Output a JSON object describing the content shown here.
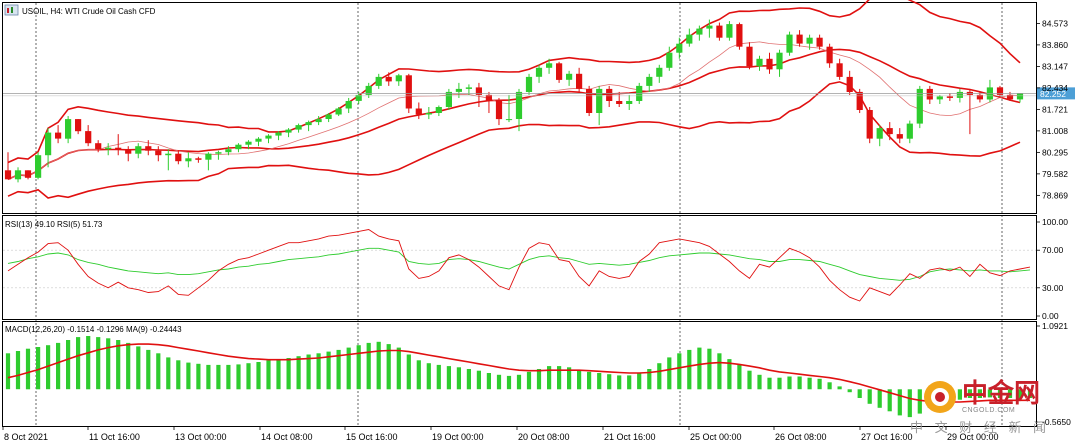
{
  "chart_data": [
    {
      "type": "candlestick",
      "symbol": "USOIL",
      "timeframe": "H4",
      "title": "USOIL, H4:  WTI Crude Oil Cash CFD",
      "y_ticks": [
        "84.573",
        "83.860",
        "83.147",
        "82.434",
        "81.721",
        "81.008",
        "80.295",
        "79.582",
        "78.869"
      ],
      "ylim": [
        78.45,
        85.15
      ],
      "current_price": "82.252",
      "current_price_color": "#4d9fd6",
      "candles": [
        [
          79.7,
          80.3,
          79.4,
          79.4
        ],
        [
          79.4,
          79.8,
          79.3,
          79.7
        ],
        [
          79.7,
          79.7,
          79.4,
          79.45
        ],
        [
          79.45,
          80.3,
          79.4,
          80.2
        ],
        [
          80.2,
          81.1,
          79.8,
          80.95
        ],
        [
          80.95,
          81.2,
          80.6,
          80.75
        ],
        [
          80.75,
          81.5,
          80.6,
          81.4
        ],
        [
          81.4,
          81.4,
          80.9,
          81.0
        ],
        [
          81.0,
          81.2,
          80.5,
          80.6
        ],
        [
          80.6,
          80.7,
          80.3,
          80.4
        ],
        [
          80.4,
          80.6,
          80.2,
          80.45
        ],
        [
          80.45,
          80.9,
          80.2,
          80.4
        ],
        [
          80.4,
          80.5,
          80.0,
          80.25
        ],
        [
          80.25,
          80.6,
          80.1,
          80.5
        ],
        [
          80.5,
          80.7,
          80.2,
          80.35
        ],
        [
          80.35,
          80.5,
          80.0,
          80.2
        ],
        [
          80.2,
          80.4,
          79.7,
          80.25
        ],
        [
          80.25,
          80.35,
          79.9,
          80.0
        ],
        [
          80.0,
          80.3,
          79.8,
          80.1
        ],
        [
          80.1,
          80.15,
          79.95,
          80.05
        ],
        [
          80.05,
          80.3,
          79.7,
          80.25
        ],
        [
          80.25,
          80.35,
          80.05,
          80.3
        ],
        [
          80.3,
          80.5,
          80.2,
          80.4
        ],
        [
          80.4,
          80.6,
          80.3,
          80.55
        ],
        [
          80.55,
          80.7,
          80.4,
          80.65
        ],
        [
          80.65,
          80.8,
          80.5,
          80.75
        ],
        [
          80.75,
          80.9,
          80.6,
          80.85
        ],
        [
          80.85,
          81.0,
          80.7,
          80.95
        ],
        [
          80.95,
          81.1,
          80.8,
          81.05
        ],
        [
          81.05,
          81.25,
          80.95,
          81.2
        ],
        [
          81.2,
          81.35,
          81.0,
          81.3
        ],
        [
          81.3,
          81.5,
          81.2,
          81.4
        ],
        [
          81.4,
          81.6,
          81.3,
          81.55
        ],
        [
          81.55,
          81.8,
          81.5,
          81.75
        ],
        [
          81.75,
          82.1,
          81.6,
          82.0
        ],
        [
          82.0,
          82.3,
          81.9,
          82.2
        ],
        [
          82.2,
          82.6,
          82.1,
          82.5
        ],
        [
          82.5,
          82.9,
          82.4,
          82.8
        ],
        [
          82.8,
          82.95,
          82.5,
          82.65
        ],
        [
          82.65,
          82.9,
          82.5,
          82.85
        ],
        [
          82.85,
          82.9,
          81.6,
          81.75
        ],
        [
          81.75,
          81.95,
          81.4,
          81.55
        ],
        [
          81.55,
          81.8,
          81.4,
          81.6
        ],
        [
          81.6,
          81.85,
          81.5,
          81.8
        ],
        [
          81.8,
          82.4,
          81.7,
          82.3
        ],
        [
          82.3,
          82.6,
          82.1,
          82.4
        ],
        [
          82.4,
          82.55,
          82.2,
          82.45
        ],
        [
          82.45,
          82.6,
          81.8,
          82.2
        ],
        [
          82.2,
          82.3,
          81.6,
          82.0
        ],
        [
          82.0,
          82.1,
          81.2,
          81.4
        ],
        [
          81.4,
          82.2,
          81.3,
          81.4
        ],
        [
          81.4,
          82.4,
          81.0,
          82.3
        ],
        [
          82.3,
          82.9,
          82.2,
          82.8
        ],
        [
          82.8,
          83.2,
          82.6,
          83.1
        ],
        [
          83.1,
          83.4,
          82.9,
          83.25
        ],
        [
          83.25,
          83.3,
          82.6,
          82.7
        ],
        [
          82.7,
          83.0,
          82.5,
          82.9
        ],
        [
          82.9,
          83.1,
          82.3,
          82.4
        ],
        [
          82.4,
          82.5,
          81.5,
          81.6
        ],
        [
          81.6,
          82.5,
          81.2,
          82.4
        ],
        [
          82.4,
          82.5,
          81.8,
          82.0
        ],
        [
          82.0,
          82.3,
          81.8,
          81.9
        ],
        [
          81.9,
          82.2,
          81.7,
          82.0
        ],
        [
          82.0,
          82.6,
          81.9,
          82.5
        ],
        [
          82.5,
          82.9,
          82.3,
          82.8
        ],
        [
          82.8,
          83.2,
          82.6,
          83.1
        ],
        [
          83.1,
          83.8,
          83.0,
          83.6
        ],
        [
          83.6,
          84.1,
          83.4,
          83.9
        ],
        [
          83.9,
          84.4,
          83.8,
          84.2
        ],
        [
          84.2,
          84.5,
          84.0,
          84.4
        ],
        [
          84.4,
          84.7,
          84.1,
          84.5
        ],
        [
          84.5,
          84.6,
          84.0,
          84.1
        ],
        [
          84.1,
          84.65,
          84.0,
          84.55
        ],
        [
          84.55,
          84.6,
          83.7,
          83.8
        ],
        [
          83.8,
          83.95,
          83.05,
          83.15
        ],
        [
          83.15,
          83.5,
          83.0,
          83.4
        ],
        [
          83.4,
          83.6,
          82.9,
          83.05
        ],
        [
          83.05,
          83.7,
          82.8,
          83.6
        ],
        [
          83.6,
          84.3,
          83.5,
          84.2
        ],
        [
          84.2,
          84.35,
          83.8,
          83.9
        ],
        [
          83.9,
          84.2,
          83.7,
          84.1
        ],
        [
          84.1,
          84.2,
          83.7,
          83.8
        ],
        [
          83.8,
          83.9,
          83.1,
          83.25
        ],
        [
          83.25,
          83.4,
          82.7,
          82.8
        ],
        [
          82.8,
          83.0,
          82.2,
          82.3
        ],
        [
          82.3,
          82.4,
          81.6,
          81.7
        ],
        [
          81.7,
          81.8,
          80.6,
          80.75
        ],
        [
          80.75,
          81.2,
          80.5,
          81.1
        ],
        [
          81.1,
          81.3,
          80.7,
          80.9
        ],
        [
          80.9,
          81.1,
          80.6,
          80.75
        ],
        [
          80.75,
          81.35,
          80.6,
          81.25
        ],
        [
          81.25,
          82.5,
          81.1,
          82.4
        ],
        [
          82.4,
          82.5,
          81.9,
          82.05
        ],
        [
          82.05,
          82.2,
          81.9,
          82.15
        ],
        [
          82.15,
          82.25,
          82.0,
          82.1
        ],
        [
          82.1,
          82.4,
          81.95,
          82.3
        ],
        [
          82.3,
          82.4,
          80.9,
          82.2
        ],
        [
          82.2,
          82.3,
          81.95,
          82.05
        ],
        [
          82.05,
          82.7,
          81.95,
          82.45
        ],
        [
          82.45,
          82.5,
          82.1,
          82.2
        ],
        [
          82.2,
          82.3,
          82.0,
          82.05
        ],
        [
          82.05,
          82.25,
          81.95,
          82.25
        ]
      ],
      "indicators": [
        "Bollinger Bands (red)",
        "Moving average (thin red)"
      ],
      "x_ticks": [
        "8 Oct 2021",
        "11 Oct 16:00",
        "13 Oct 00:00",
        "14 Oct 08:00",
        "15 Oct 16:00",
        "19 Oct 00:00",
        "20 Oct 08:00",
        "21 Oct 16:00",
        "25 Oct 00:00",
        "26 Oct 08:00",
        "27 Oct 16:00",
        "29 Oct 00:00"
      ],
      "bull_color": "#2ecc2e",
      "bear_color": "#e01010",
      "band_color": "#e01010"
    },
    {
      "type": "line",
      "title": "RSI(13) 49.10 RSI(5) 51.73",
      "y_ticks": [
        "100.00",
        "70.00",
        "30.00",
        "0.00"
      ],
      "ylim": [
        0,
        100
      ],
      "grid": true,
      "series": [
        {
          "name": "RSI(13)",
          "color": "#2ecc2e",
          "values": [
            56,
            58,
            61,
            63,
            66,
            67,
            65,
            60,
            57,
            55,
            52,
            50,
            48,
            47,
            46,
            45,
            46,
            44,
            44,
            45,
            47,
            49,
            50,
            52,
            53,
            55,
            56,
            58,
            60,
            61,
            62,
            63,
            65,
            66,
            68,
            70,
            72,
            72,
            70,
            68,
            58,
            56,
            55,
            56,
            60,
            61,
            60,
            58,
            55,
            52,
            50,
            55,
            60,
            63,
            64,
            62,
            61,
            58,
            55,
            56,
            55,
            54,
            55,
            57,
            59,
            62,
            64,
            65,
            66,
            67,
            67,
            66,
            65,
            63,
            61,
            60,
            58,
            58,
            60,
            60,
            59,
            58,
            55,
            52,
            48,
            44,
            42,
            40,
            39,
            38,
            39,
            42,
            47,
            49,
            50,
            49,
            48,
            49,
            48,
            48,
            47,
            48,
            49
          ]
        },
        {
          "name": "RSI(5)",
          "color": "#e01010",
          "values": [
            48,
            55,
            62,
            68,
            77,
            78,
            70,
            55,
            42,
            35,
            30,
            36,
            30,
            28,
            25,
            26,
            32,
            23,
            22,
            30,
            38,
            48,
            55,
            60,
            62,
            66,
            70,
            74,
            78,
            78,
            80,
            82,
            85,
            86,
            88,
            90,
            92,
            85,
            82,
            80,
            50,
            40,
            42,
            48,
            62,
            65,
            60,
            52,
            42,
            32,
            28,
            52,
            72,
            78,
            76,
            60,
            58,
            42,
            32,
            48,
            42,
            40,
            42,
            58,
            66,
            78,
            80,
            82,
            80,
            78,
            74,
            66,
            58,
            48,
            40,
            55,
            52,
            62,
            72,
            68,
            62,
            52,
            38,
            28,
            20,
            16,
            30,
            26,
            22,
            33,
            45,
            40,
            49,
            51,
            48,
            52,
            42,
            55,
            46,
            43,
            48,
            50,
            52
          ]
        }
      ]
    },
    {
      "type": "bar",
      "title": "MACD(12,26,20) -0.1514 -0.1296 MA(9) -0.24443",
      "y_ticks": [
        "1.0921",
        "-0.5650"
      ],
      "ylim": [
        -0.565,
        1.0921
      ],
      "histogram": [
        0.62,
        0.66,
        0.7,
        0.73,
        0.76,
        0.8,
        0.85,
        0.9,
        0.92,
        0.9,
        0.88,
        0.85,
        0.8,
        0.74,
        0.68,
        0.62,
        0.55,
        0.5,
        0.46,
        0.44,
        0.42,
        0.42,
        0.42,
        0.43,
        0.45,
        0.47,
        0.5,
        0.52,
        0.54,
        0.57,
        0.6,
        0.62,
        0.65,
        0.68,
        0.72,
        0.76,
        0.8,
        0.82,
        0.78,
        0.72,
        0.6,
        0.5,
        0.45,
        0.42,
        0.4,
        0.38,
        0.35,
        0.32,
        0.28,
        0.25,
        0.23,
        0.25,
        0.3,
        0.35,
        0.4,
        0.4,
        0.38,
        0.34,
        0.3,
        0.28,
        0.26,
        0.24,
        0.24,
        0.28,
        0.35,
        0.45,
        0.55,
        0.62,
        0.68,
        0.72,
        0.7,
        0.62,
        0.52,
        0.42,
        0.32,
        0.25,
        0.2,
        0.2,
        0.22,
        0.22,
        0.2,
        0.18,
        0.12,
        0.05,
        -0.05,
        -0.15,
        -0.25,
        -0.32,
        -0.38,
        -0.45,
        -0.48,
        -0.42,
        -0.32,
        -0.25,
        -0.2,
        -0.18,
        -0.15,
        -0.15,
        -0.14,
        -0.15,
        -0.15,
        -0.16,
        -0.15
      ],
      "signal_values": [
        0.2,
        0.24,
        0.29,
        0.34,
        0.4,
        0.46,
        0.52,
        0.58,
        0.63,
        0.68,
        0.72,
        0.75,
        0.77,
        0.78,
        0.78,
        0.77,
        0.75,
        0.72,
        0.69,
        0.66,
        0.63,
        0.6,
        0.57,
        0.55,
        0.53,
        0.52,
        0.51,
        0.51,
        0.51,
        0.52,
        0.53,
        0.54,
        0.56,
        0.58,
        0.6,
        0.62,
        0.64,
        0.66,
        0.67,
        0.67,
        0.65,
        0.62,
        0.59,
        0.56,
        0.53,
        0.5,
        0.47,
        0.44,
        0.41,
        0.38,
        0.35,
        0.33,
        0.32,
        0.32,
        0.33,
        0.33,
        0.33,
        0.33,
        0.32,
        0.31,
        0.3,
        0.29,
        0.28,
        0.28,
        0.29,
        0.31,
        0.34,
        0.37,
        0.4,
        0.43,
        0.45,
        0.46,
        0.45,
        0.43,
        0.4,
        0.37,
        0.33,
        0.3,
        0.28,
        0.26,
        0.24,
        0.22,
        0.2,
        0.17,
        0.13,
        0.09,
        0.04,
        -0.01,
        -0.06,
        -0.11,
        -0.16,
        -0.19,
        -0.21,
        -0.22,
        -0.22,
        -0.22,
        -0.21,
        -0.2,
        -0.19,
        -0.19,
        -0.19,
        -0.19,
        -0.19
      ],
      "signal_color": "#e01010",
      "histogram_color": "#2ecc2e"
    }
  ],
  "watermark": {
    "logo_text": "中金网",
    "url_text": "CNGOLD.COM",
    "tagline": "中 文 财 经 新 闻"
  }
}
